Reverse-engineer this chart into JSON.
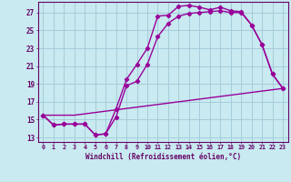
{
  "xlabel": "Windchill (Refroidissement éolien,°C)",
  "bg_color": "#c8eaf0",
  "grid_color": "#a0c8d8",
  "line_color": "#990099",
  "marker": "D",
  "markersize": 2.2,
  "linewidth": 1.0,
  "xlim": [
    -0.5,
    23.5
  ],
  "ylim": [
    12.5,
    28.2
  ],
  "yticks": [
    13,
    15,
    17,
    19,
    21,
    23,
    25,
    27
  ],
  "xticks": [
    0,
    1,
    2,
    3,
    4,
    5,
    6,
    7,
    8,
    9,
    10,
    11,
    12,
    13,
    14,
    15,
    16,
    17,
    18,
    19,
    20,
    21,
    22,
    23
  ],
  "line1_x": [
    0,
    1,
    2,
    3,
    4,
    5,
    6,
    7,
    8,
    9,
    10,
    11,
    12,
    13,
    14,
    15,
    16,
    17,
    18,
    19,
    20,
    21,
    22,
    23
  ],
  "line1_y": [
    15.5,
    14.4,
    14.5,
    14.5,
    14.5,
    13.3,
    13.4,
    16.2,
    19.5,
    21.2,
    23.0,
    26.6,
    26.7,
    27.7,
    27.8,
    27.6,
    27.3,
    27.6,
    27.2,
    27.1,
    25.6,
    23.4,
    20.1,
    18.5
  ],
  "line2_x": [
    0,
    1,
    2,
    3,
    4,
    5,
    6,
    7,
    8,
    9,
    10,
    11,
    12,
    13,
    14,
    15,
    16,
    17,
    18,
    19,
    20,
    21,
    22,
    23
  ],
  "line2_y": [
    15.5,
    14.4,
    14.5,
    14.5,
    14.5,
    13.3,
    13.4,
    15.3,
    18.8,
    19.3,
    21.2,
    24.3,
    25.8,
    26.6,
    26.9,
    27.0,
    27.1,
    27.2,
    27.0,
    27.0,
    25.6,
    23.4,
    20.1,
    18.5
  ],
  "line3_x": [
    0,
    3,
    23
  ],
  "line3_y": [
    15.5,
    15.5,
    18.5
  ],
  "xlabel_color": "#660066",
  "tick_color": "#660066",
  "spine_color": "#660066"
}
